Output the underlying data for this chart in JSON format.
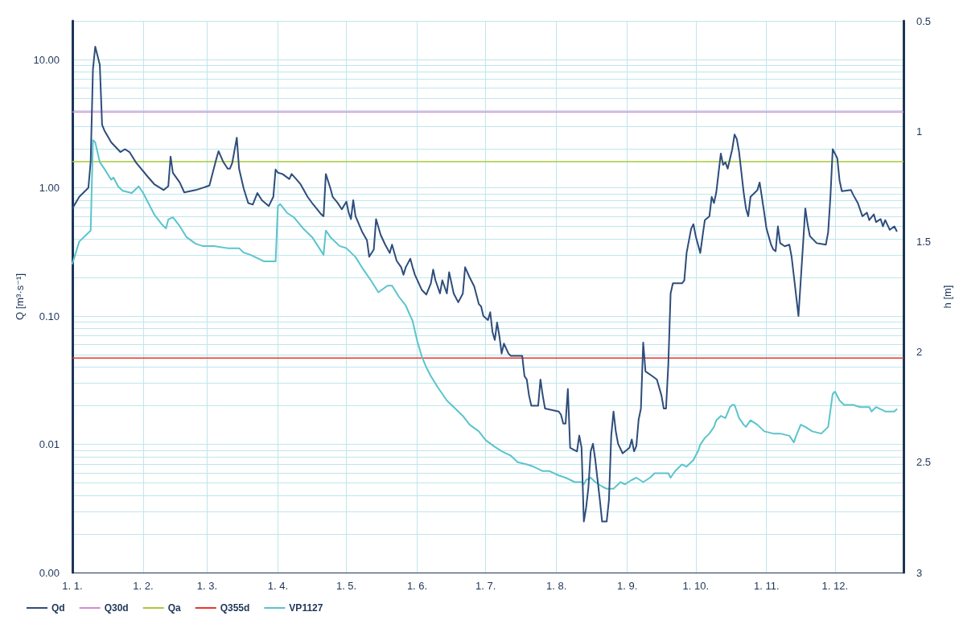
{
  "chart_data": {
    "type": "line",
    "ylabel": "Q [m³·s⁻¹]",
    "y2label": "h [m]",
    "log": "y",
    "grid": true,
    "legend": "bottom left",
    "marker": "none",
    "line_style": "solid",
    "xlim": [
      "--01-01",
      "--12-31"
    ],
    "xticks": [
      {
        "value": "--01-01",
        "label": "1. 1."
      },
      {
        "value": "--02-01",
        "label": "1. 2."
      },
      {
        "value": "--03-01",
        "label": "1. 3."
      },
      {
        "value": "--04-01",
        "label": "1. 4."
      },
      {
        "value": "--05-01",
        "label": "1. 5."
      },
      {
        "value": "--06-01",
        "label": "1. 6."
      },
      {
        "value": "--07-01",
        "label": "1. 7."
      },
      {
        "value": "--08-01",
        "label": "1. 8."
      },
      {
        "value": "--09-01",
        "label": "1. 9."
      },
      {
        "value": "--10-01",
        "label": "1. 10."
      },
      {
        "value": "--11-01",
        "label": "1. 11."
      },
      {
        "value": "--12-01",
        "label": "1. 12."
      }
    ],
    "ylim": [
      0.001,
      20
    ],
    "yticks": [
      {
        "value": 0.001,
        "label": "0.00"
      },
      {
        "value": 0.01,
        "label": "0.01"
      },
      {
        "value": 0.1,
        "label": "0.10"
      },
      {
        "value": 1,
        "label": "1.00"
      },
      {
        "value": 10,
        "label": "10.00"
      }
    ],
    "y2lim": [
      3,
      0.5
    ],
    "y2ticks": [
      0.5,
      1,
      1.5,
      2,
      2.5,
      3
    ],
    "ref_lines": [
      {
        "axis": "y",
        "value": 3.9,
        "label": "Q30d",
        "color": "#d98ad0"
      },
      {
        "axis": "y",
        "value": 1.6,
        "label": "Qa",
        "color": "#a8c83a"
      },
      {
        "axis": "y",
        "value": 0.047,
        "label": "Q355d",
        "color": "#e8372c"
      }
    ],
    "series": [
      {
        "name": "Qd",
        "color": "#2e4d7b",
        "x": [
          "--01-01",
          "--01-04",
          "--01-08",
          "--01-09",
          "--01-10",
          "--01-11",
          "--01-13",
          "--01-14",
          "--01-15",
          "--01-18",
          "--01-22",
          "--01-24",
          "--01-26",
          "--01-29",
          "--02-03",
          "--02-06",
          "--02-10",
          "--02-12",
          "--02-13",
          "--02-14",
          "--02-17",
          "--02-19",
          "--02-24",
          "--03-02",
          "--03-05",
          "--03-06",
          "--03-08",
          "--03-10",
          "--03-11",
          "--03-12",
          "--03-14",
          "--03-15",
          "--03-17",
          "--03-19",
          "--03-21",
          "--03-23",
          "--03-25",
          "--03-28",
          "--03-30",
          "--03-31",
          "--04-01",
          "--04-03",
          "--04-06",
          "--04-07",
          "--04-09",
          "--04-11",
          "--04-14",
          "--04-16",
          "--04-20",
          "--04-21",
          "--04-22",
          "--04-24",
          "--04-25",
          "--04-27",
          "--04-29",
          "--05-01",
          "--05-02",
          "--05-03",
          "--05-04",
          "--05-05",
          "--05-08",
          "--05-10",
          "--05-11",
          "--05-13",
          "--05-14",
          "--05-16",
          "--05-18",
          "--05-20",
          "--05-21",
          "--05-23",
          "--05-25",
          "--05-26",
          "--05-27",
          "--05-29",
          "--05-30",
          "--05-31",
          "--06-03",
          "--06-05",
          "--06-07",
          "--06-08",
          "--06-09",
          "--06-11",
          "--06-12",
          "--06-14",
          "--06-15",
          "--06-17",
          "--06-19",
          "--06-21",
          "--06-22",
          "--06-24",
          "--06-26",
          "--06-28",
          "--06-29",
          "--06-30",
          "--07-02",
          "--07-03",
          "--07-04",
          "--07-05",
          "--07-06",
          "--07-07",
          "--07-08",
          "--07-09",
          "--07-11",
          "--07-12",
          "--07-17",
          "--07-18",
          "--07-19",
          "--07-20",
          "--07-21",
          "--07-24",
          "--07-25",
          "--07-26",
          "--07-27",
          "--08-02",
          "--08-03",
          "--08-04",
          "--08-05",
          "--08-06",
          "--08-07",
          "--08-10",
          "--08-11",
          "--08-12",
          "--08-13",
          "--08-14",
          "--08-15",
          "--08-16",
          "--08-17",
          "--08-18",
          "--08-20",
          "--08-21",
          "--08-23",
          "--08-24",
          "--08-25",
          "--08-26",
          "--08-27",
          "--08-28",
          "--08-30",
          "--09-02",
          "--09-03",
          "--09-04",
          "--09-05",
          "--09-06",
          "--09-07",
          "--09-08",
          "--09-09",
          "--09-12",
          "--09-14",
          "--09-16",
          "--09-17",
          "--09-18",
          "--09-19",
          "--09-20",
          "--09-21",
          "--09-25",
          "--09-26",
          "--09-27",
          "--09-29",
          "--09-30",
          "--10-01",
          "--10-02",
          "--10-03",
          "--10-04",
          "--10-05",
          "--10-07",
          "--10-08",
          "--10-09",
          "--10-10",
          "--10-12",
          "--10-13",
          "--10-14",
          "--10-15",
          "--10-17",
          "--10-18",
          "--10-19",
          "--10-20",
          "--10-22",
          "--10-23",
          "--10-24",
          "--10-25",
          "--10-27",
          "--10-28",
          "--10-29",
          "--10-31",
          "--11-01",
          "--11-03",
          "--11-04",
          "--11-05",
          "--11-06",
          "--11-07",
          "--11-09",
          "--11-11",
          "--11-12",
          "--11-14",
          "--11-15",
          "--11-17",
          "--11-18",
          "--11-19",
          "--11-20",
          "--11-23",
          "--11-27",
          "--11-28",
          "--11-29",
          "--11-30",
          "--12-02",
          "--12-03",
          "--12-04",
          "--12-08",
          "--12-09",
          "--12-11",
          "--12-13",
          "--12-15",
          "--12-16",
          "--12-18",
          "--12-19",
          "--12-21",
          "--12-22",
          "--12-23",
          "--12-25",
          "--12-27",
          "--12-28"
        ],
        "values": [
          0.69,
          0.85,
          1.0,
          1.6,
          8.4,
          12.6,
          9.1,
          3.1,
          2.8,
          2.26,
          1.9,
          2.0,
          1.9,
          1.56,
          1.22,
          1.06,
          0.96,
          1.03,
          1.75,
          1.31,
          1.1,
          0.92,
          0.96,
          1.04,
          1.67,
          1.93,
          1.6,
          1.41,
          1.41,
          1.56,
          2.46,
          1.41,
          0.99,
          0.76,
          0.74,
          0.91,
          0.8,
          0.72,
          0.85,
          1.39,
          1.31,
          1.28,
          1.17,
          1.28,
          1.17,
          1.06,
          0.85,
          0.76,
          0.62,
          0.6,
          1.28,
          0.99,
          0.85,
          0.77,
          0.68,
          0.78,
          0.64,
          0.57,
          0.8,
          0.6,
          0.45,
          0.39,
          0.29,
          0.33,
          0.57,
          0.43,
          0.36,
          0.31,
          0.36,
          0.27,
          0.24,
          0.21,
          0.24,
          0.28,
          0.24,
          0.21,
          0.16,
          0.147,
          0.18,
          0.23,
          0.19,
          0.15,
          0.19,
          0.15,
          0.22,
          0.15,
          0.128,
          0.15,
          0.24,
          0.2,
          0.17,
          0.124,
          0.119,
          0.1,
          0.093,
          0.107,
          0.075,
          0.065,
          0.089,
          0.07,
          0.051,
          0.061,
          0.051,
          0.049,
          0.049,
          0.034,
          0.032,
          0.024,
          0.02,
          0.02,
          0.032,
          0.024,
          0.019,
          0.018,
          0.017,
          0.0145,
          0.0145,
          0.027,
          0.0094,
          0.0088,
          0.0117,
          0.0094,
          0.0025,
          0.0032,
          0.0046,
          0.0088,
          0.0101,
          0.0076,
          0.0037,
          0.0025,
          0.0025,
          0.0037,
          0.0117,
          0.018,
          0.0126,
          0.0101,
          0.0085,
          0.0094,
          0.0109,
          0.0088,
          0.0097,
          0.0156,
          0.019,
          0.062,
          0.037,
          0.034,
          0.032,
          0.024,
          0.019,
          0.019,
          0.042,
          0.15,
          0.18,
          0.18,
          0.19,
          0.31,
          0.48,
          0.52,
          0.42,
          0.36,
          0.31,
          0.42,
          0.56,
          0.6,
          0.85,
          0.76,
          0.92,
          1.85,
          1.51,
          1.58,
          1.41,
          2.0,
          2.6,
          2.4,
          1.9,
          0.92,
          0.69,
          0.6,
          0.85,
          0.92,
          0.96,
          1.1,
          0.64,
          0.48,
          0.36,
          0.33,
          0.32,
          0.5,
          0.37,
          0.35,
          0.36,
          0.29,
          0.143,
          0.1,
          0.36,
          0.69,
          0.52,
          0.42,
          0.37,
          0.36,
          0.45,
          0.85,
          2.0,
          1.7,
          1.14,
          0.94,
          0.96,
          0.88,
          0.76,
          0.6,
          0.64,
          0.56,
          0.62,
          0.54,
          0.57,
          0.5,
          0.56,
          0.47,
          0.5,
          0.46
        ]
      },
      {
        "name": "VP1127",
        "color": "#5bc4cc",
        "axis": "y2",
        "x": [
          "--01-01",
          "--01-04",
          "--01-08",
          "--01-09",
          "--01-10",
          "--01-11",
          "--01-13",
          "--01-15",
          "--01-18",
          "--01-19",
          "--01-21",
          "--01-23",
          "--01-27",
          "--01-30",
          "--02-01",
          "--02-04",
          "--02-06",
          "--02-09",
          "--02-11",
          "--02-12",
          "--02-14",
          "--02-17",
          "--02-20",
          "--02-24",
          "--02-27",
          "--03-04",
          "--03-10",
          "--03-15",
          "--03-17",
          "--03-20",
          "--03-24",
          "--03-26",
          "--03-29",
          "--03-31",
          "--04-01",
          "--04-02",
          "--04-05",
          "--04-08",
          "--04-12",
          "--04-16",
          "--04-21",
          "--04-22",
          "--04-24",
          "--04-28",
          "--05-01",
          "--05-05",
          "--05-08",
          "--05-12",
          "--05-15",
          "--05-19",
          "--05-21",
          "--05-24",
          "--05-27",
          "--05-30",
          "--06-01",
          "--06-03",
          "--06-05",
          "--06-07",
          "--06-10",
          "--06-14",
          "--06-17",
          "--06-21",
          "--06-24",
          "--06-28",
          "--07-01",
          "--07-05",
          "--07-08",
          "--07-12",
          "--07-15",
          "--07-19",
          "--07-22",
          "--07-26",
          "--07-29",
          "--08-02",
          "--08-05",
          "--08-09",
          "--08-12",
          "--08-13",
          "--08-14",
          "--08-16",
          "--08-18",
          "--08-21",
          "--08-23",
          "--08-26",
          "--08-29",
          "--08-31",
          "--09-03",
          "--09-05",
          "--09-08",
          "--09-11",
          "--09-13",
          "--09-16",
          "--09-19",
          "--09-20",
          "--09-22",
          "--09-25",
          "--09-27",
          "--09-30",
          "--10-02",
          "--10-03",
          "--10-05",
          "--10-07",
          "--10-09",
          "--10-10",
          "--10-12",
          "--10-14",
          "--10-16",
          "--10-17",
          "--10-18",
          "--10-20",
          "--10-22",
          "--10-23",
          "--10-25",
          "--10-28",
          "--10-31",
          "--11-04",
          "--11-07",
          "--11-11",
          "--11-13",
          "--11-14",
          "--11-16",
          "--11-18",
          "--11-21",
          "--11-25",
          "--11-28",
          "--11-30",
          "--12-01",
          "--12-03",
          "--12-05",
          "--12-09",
          "--12-12",
          "--12-16",
          "--12-17",
          "--12-19",
          "--12-23",
          "--12-27",
          "--12-28"
        ],
        "values": [
          1.6,
          1.5,
          1.46,
          1.45,
          1.04,
          1.05,
          1.14,
          1.17,
          1.22,
          1.21,
          1.25,
          1.27,
          1.28,
          1.25,
          1.28,
          1.34,
          1.38,
          1.42,
          1.44,
          1.4,
          1.39,
          1.43,
          1.48,
          1.51,
          1.52,
          1.52,
          1.53,
          1.53,
          1.55,
          1.56,
          1.58,
          1.59,
          1.59,
          1.59,
          1.34,
          1.33,
          1.37,
          1.39,
          1.44,
          1.48,
          1.56,
          1.45,
          1.48,
          1.52,
          1.53,
          1.57,
          1.62,
          1.68,
          1.73,
          1.7,
          1.7,
          1.75,
          1.79,
          1.86,
          1.95,
          2.02,
          2.07,
          2.11,
          2.16,
          2.22,
          2.25,
          2.29,
          2.33,
          2.36,
          2.4,
          2.43,
          2.45,
          2.47,
          2.5,
          2.51,
          2.52,
          2.54,
          2.54,
          2.56,
          2.57,
          2.59,
          2.59,
          2.6,
          2.58,
          2.57,
          2.59,
          2.61,
          2.62,
          2.62,
          2.59,
          2.6,
          2.58,
          2.57,
          2.59,
          2.57,
          2.55,
          2.55,
          2.55,
          2.57,
          2.54,
          2.51,
          2.52,
          2.49,
          2.45,
          2.42,
          2.39,
          2.37,
          2.34,
          2.31,
          2.29,
          2.3,
          2.25,
          2.24,
          2.24,
          2.3,
          2.33,
          2.34,
          2.31,
          2.33,
          2.36,
          2.37,
          2.37,
          2.38,
          2.41,
          2.38,
          2.33,
          2.34,
          2.36,
          2.37,
          2.34,
          2.19,
          2.18,
          2.22,
          2.24,
          2.24,
          2.25,
          2.25,
          2.27,
          2.25,
          2.27,
          2.27,
          2.26
        ]
      }
    ]
  }
}
